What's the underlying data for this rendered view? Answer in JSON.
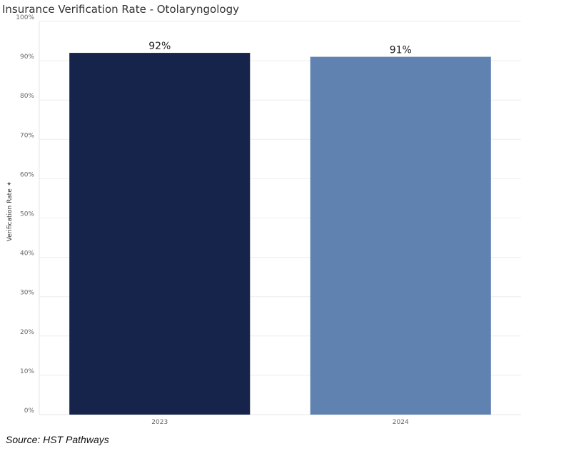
{
  "title": "Insurance Verification Rate - Otolaryngology",
  "source": "Source: HST Pathways",
  "chart_data": {
    "type": "bar",
    "title": "Insurance Verification Rate - Otolaryngology",
    "xlabel": "",
    "ylabel": "Verification Rate",
    "categories": [
      "2023",
      "2024"
    ],
    "values": [
      92,
      91
    ],
    "value_labels": [
      "92%",
      "91%"
    ],
    "bar_colors": [
      "#16234a",
      "#6082b0"
    ],
    "ylim": [
      0,
      100
    ],
    "yticks": [
      "0%",
      "10%",
      "20%",
      "30%",
      "40%",
      "50%",
      "60%",
      "70%",
      "80%",
      "90%",
      "100%"
    ],
    "grid": true,
    "legend": "none"
  },
  "icons": {
    "ylabel_icon": "pin-icon"
  }
}
